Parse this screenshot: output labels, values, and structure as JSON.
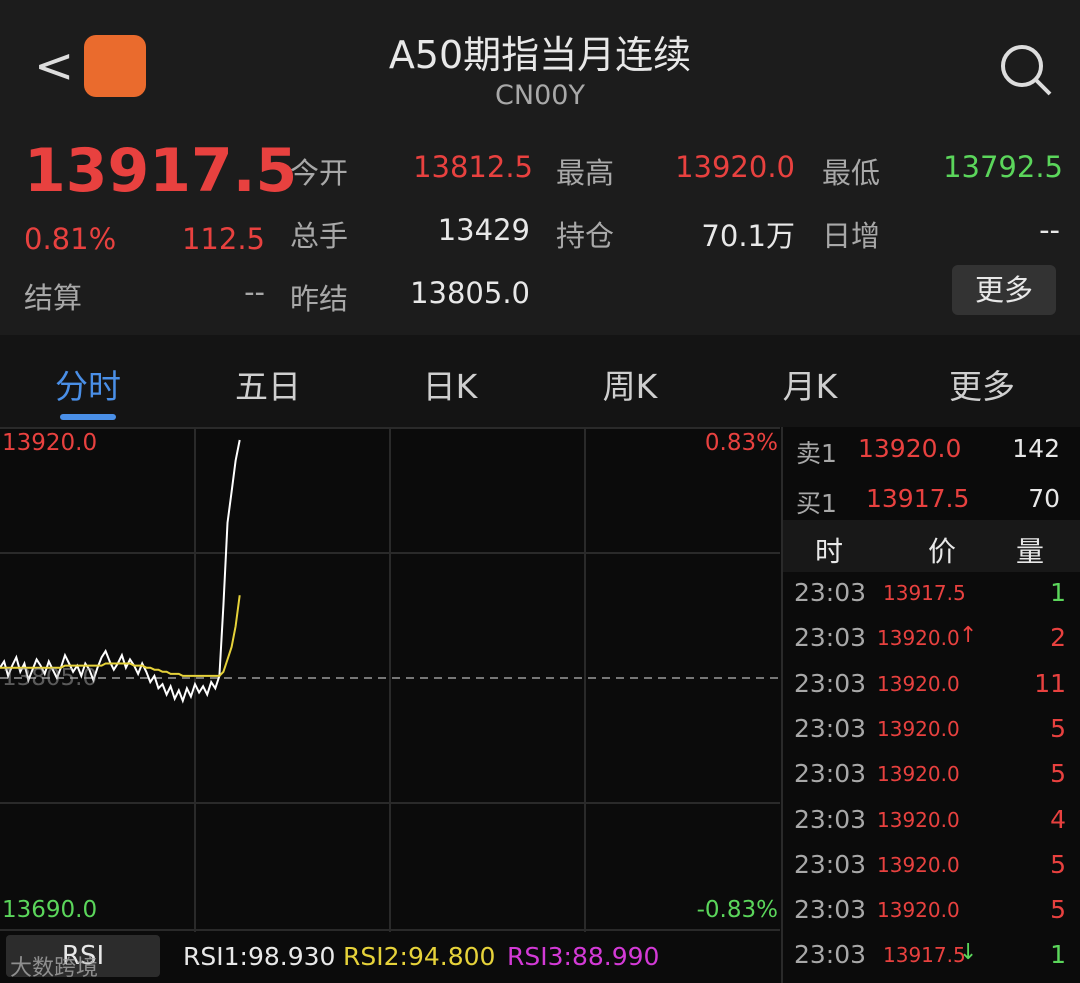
{
  "header": {
    "title": "A50期指当月连续",
    "code": "CN00Y"
  },
  "quote": {
    "price": "13917.5",
    "pct": "0.81%",
    "change": "112.5",
    "settle_label": "结算",
    "settle": "--",
    "fields": [
      {
        "label": "今开",
        "value": "13812.5"
      },
      {
        "label": "最高",
        "value": "13920.0"
      },
      {
        "label": "最低",
        "value": "13792.5"
      },
      {
        "label": "总手",
        "value": "13429"
      },
      {
        "label": "持仓",
        "value": "70.1万"
      },
      {
        "label": "日增",
        "value": "--"
      },
      {
        "label": "昨结",
        "value": "13805.0"
      }
    ],
    "more": "更多"
  },
  "tabs": [
    "分时",
    "五日",
    "日K",
    "周K",
    "月K",
    "更多"
  ],
  "chart": {
    "top_label": "13920.0",
    "top_pct": "0.83%",
    "bottom_label": "13690.0",
    "bottom_pct": "-0.83%",
    "mid_label": "13805.0",
    "ylim": [
      13690,
      13920
    ],
    "xlim": [
      0,
      192
    ],
    "prices": [
      13810,
      13813,
      13806,
      13811,
      13815,
      13808,
      13812,
      13804,
      13809,
      13814,
      13811,
      13807,
      13813,
      13809,
      13805,
      13810,
      13816,
      13812,
      13808,
      13811,
      13806,
      13812,
      13809,
      13804,
      13810,
      13815,
      13818,
      13813,
      13809,
      13812,
      13816,
      13810,
      13814,
      13811,
      13807,
      13812,
      13808,
      13803,
      13806,
      13800,
      13802,
      13797,
      13801,
      13795,
      13799,
      13794,
      13800,
      13796,
      13802,
      13798,
      13801,
      13797,
      13803,
      13800,
      13806,
      13840,
      13880,
      13895,
      13910,
      13920
    ],
    "avg": [
      13810,
      13810,
      13810,
      13810,
      13810,
      13810,
      13810,
      13810,
      13810,
      13810,
      13810,
      13810,
      13810,
      13810,
      13810,
      13810,
      13811,
      13811,
      13811,
      13811,
      13811,
      13811,
      13811,
      13811,
      13811,
      13811,
      13812,
      13812,
      13812,
      13812,
      13812,
      13812,
      13812,
      13811,
      13811,
      13811,
      13810,
      13810,
      13809,
      13809,
      13808,
      13808,
      13807,
      13807,
      13807,
      13806,
      13806,
      13806,
      13806,
      13806,
      13806,
      13806,
      13806,
      13806,
      13806,
      13808,
      13814,
      13820,
      13830,
      13845
    ]
  },
  "rsi": {
    "button": "RSI",
    "rsi1": "RSI1:98.930",
    "rsi2": "RSI2:94.800",
    "rsi3": "RSI3:88.990"
  },
  "watermark": "大数跨境",
  "book": {
    "sell": {
      "label": "卖1",
      "price": "13920.0",
      "vol": "142"
    },
    "buy": {
      "label": "买1",
      "price": "13917.5",
      "vol": "70"
    },
    "headers": [
      "时",
      "价",
      "量"
    ],
    "trades": [
      {
        "time": "23:03",
        "price": "13917.5",
        "vol": "1"
      },
      {
        "time": "23:03",
        "price": "13920.0",
        "arrow": "↑",
        "vol": "2"
      },
      {
        "time": "23:03",
        "price": "13920.0",
        "vol": "11"
      },
      {
        "time": "23:03",
        "price": "13920.0",
        "vol": "5"
      },
      {
        "time": "23:03",
        "price": "13920.0",
        "vol": "5"
      },
      {
        "time": "23:03",
        "price": "13920.0",
        "vol": "4"
      },
      {
        "time": "23:03",
        "price": "13920.0",
        "vol": "5"
      },
      {
        "time": "23:03",
        "price": "13920.0",
        "vol": "5"
      },
      {
        "time": "23:03",
        "price": "13917.5",
        "arrow": "↓",
        "vol": "1"
      }
    ]
  }
}
